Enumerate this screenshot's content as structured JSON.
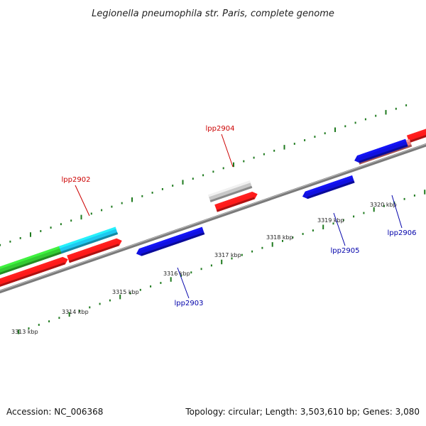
{
  "title": "Legionella pneumophila str. Paris, complete genome",
  "colors": {
    "backbone": "#7a7a7a",
    "tick": "#1e7a1e",
    "label_forward": "#cc0000",
    "label_reverse": "#0000aa"
  },
  "ticks": [
    "3313 kbp",
    "3314 kbp",
    "3315 kbp",
    "3316 kbp",
    "3317 kbp",
    "3318 kbp",
    "3319 kbp",
    "3320 kbp"
  ],
  "genes": [
    {
      "name": "lpp2902",
      "label": "lpp2902",
      "strand": "forward",
      "color": "#ff1a1a"
    },
    {
      "name": "lpp2903",
      "label": "lpp2903",
      "strand": "reverse",
      "color": "#1010e0"
    },
    {
      "name": "lpp2904",
      "label": "lpp2904",
      "strand": "forward",
      "color": "#ff1a1a"
    },
    {
      "name": "lpp2905",
      "label": "lpp2905",
      "strand": "reverse",
      "color": "#1010e0"
    },
    {
      "name": "lpp2906",
      "label": "lpp2906",
      "strand": "reverse",
      "color": "#1010e0"
    }
  ],
  "features": [
    {
      "name": "green-feature",
      "color": "#33cc33"
    },
    {
      "name": "cyan-feature",
      "color": "#1ec8f0"
    },
    {
      "name": "gray-feature",
      "color": "#c8c8c8"
    },
    {
      "name": "pink-feature",
      "color": "#ee7b7b"
    },
    {
      "name": "unlabeled-red-gene-1",
      "color": "#ff1a1a"
    },
    {
      "name": "unlabeled-red-gene-2",
      "color": "#ff1a1a"
    },
    {
      "name": "unlabeled-blue-gene",
      "color": "#1010e0"
    }
  ],
  "footer": {
    "accession": "Accession: NC_006368",
    "summary": "Topology: circular; Length: 3,503,610 bp; Genes: 3,080"
  }
}
